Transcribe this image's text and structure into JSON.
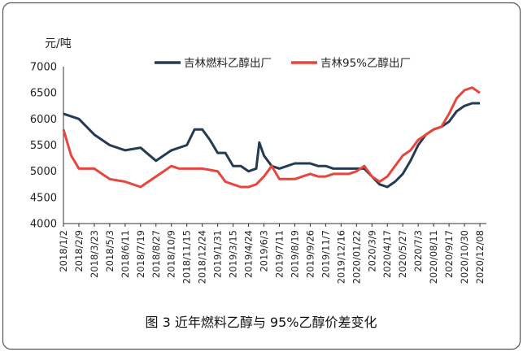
{
  "chart_data": {
    "type": "line",
    "unit_label": "元/吨",
    "caption": "图 3  近年燃料乙醇与 95%乙醇价差变化",
    "ylim": [
      4000,
      7000
    ],
    "yticks": [
      4000,
      4500,
      5000,
      5500,
      6000,
      6500,
      7000
    ],
    "x_tick_labels": [
      "2018/1/2",
      "2018/2/9",
      "2018/3/23",
      "2018/5/3",
      "2018/6/11",
      "2018/7/19",
      "2018/8/27",
      "2018/10/9",
      "2018/11/15",
      "2018/12/24",
      "2019/1/31",
      "2019/3/15",
      "2019/4/24",
      "2019/6/3",
      "2019/7/11",
      "2019/8/19",
      "2019/9/26",
      "2019/11/7",
      "2019/12/16",
      "2020/01/22",
      "2020/3/9",
      "2020/4/17",
      "2020/5/27",
      "2020/7/3",
      "2020/08/11",
      "2020/9/17",
      "2020/10/30",
      "2020/12/08"
    ],
    "grid": false,
    "legend_position": "top-center",
    "series": [
      {
        "name": "吉林燃料乙醇出厂",
        "color": "#243b53",
        "values": [
          [
            0,
            6100
          ],
          [
            1,
            6000
          ],
          [
            2,
            5700
          ],
          [
            3,
            5500
          ],
          [
            4,
            5400
          ],
          [
            5,
            5450
          ],
          [
            6,
            5200
          ],
          [
            7,
            5400
          ],
          [
            8,
            5500
          ],
          [
            8.5,
            5800
          ],
          [
            9,
            5800
          ],
          [
            9.5,
            5600
          ],
          [
            10,
            5350
          ],
          [
            10.5,
            5350
          ],
          [
            11,
            5100
          ],
          [
            11.5,
            5100
          ],
          [
            12,
            5000
          ],
          [
            12.5,
            5050
          ],
          [
            12.7,
            5550
          ],
          [
            13,
            5300
          ],
          [
            13.5,
            5100
          ],
          [
            14,
            5050
          ],
          [
            14.5,
            5100
          ],
          [
            15,
            5150
          ],
          [
            15.5,
            5150
          ],
          [
            16,
            5150
          ],
          [
            16.5,
            5100
          ],
          [
            17,
            5100
          ],
          [
            17.5,
            5050
          ],
          [
            18,
            5050
          ],
          [
            18.5,
            5050
          ],
          [
            19,
            5050
          ],
          [
            19.5,
            5050
          ],
          [
            20,
            4900
          ],
          [
            20.5,
            4750
          ],
          [
            21,
            4700
          ],
          [
            21.5,
            4800
          ],
          [
            22,
            4950
          ],
          [
            22.5,
            5200
          ],
          [
            23,
            5500
          ],
          [
            23.5,
            5700
          ],
          [
            24,
            5800
          ],
          [
            24.5,
            5850
          ],
          [
            25,
            5950
          ],
          [
            25.5,
            6150
          ],
          [
            26,
            6250
          ],
          [
            26.5,
            6300
          ],
          [
            27,
            6300
          ]
        ]
      },
      {
        "name": "吉林95%乙醇出厂",
        "color": "#e8453c",
        "values": [
          [
            0,
            5800
          ],
          [
            0.5,
            5300
          ],
          [
            1,
            5050
          ],
          [
            2,
            5050
          ],
          [
            3,
            4850
          ],
          [
            4,
            4800
          ],
          [
            5,
            4700
          ],
          [
            6,
            4900
          ],
          [
            6.5,
            5000
          ],
          [
            7,
            5100
          ],
          [
            7.5,
            5050
          ],
          [
            8,
            5050
          ],
          [
            9,
            5050
          ],
          [
            10,
            5000
          ],
          [
            10.5,
            4800
          ],
          [
            11,
            4750
          ],
          [
            11.5,
            4700
          ],
          [
            12,
            4700
          ],
          [
            12.5,
            4750
          ],
          [
            13,
            4900
          ],
          [
            13.5,
            5100
          ],
          [
            14,
            4850
          ],
          [
            14.5,
            4850
          ],
          [
            15,
            4850
          ],
          [
            15.5,
            4900
          ],
          [
            16,
            4950
          ],
          [
            16.5,
            4900
          ],
          [
            17,
            4900
          ],
          [
            17.5,
            4950
          ],
          [
            18,
            4950
          ],
          [
            18.5,
            4950
          ],
          [
            19,
            5000
          ],
          [
            19.5,
            5100
          ],
          [
            20,
            4900
          ],
          [
            20.5,
            4800
          ],
          [
            21,
            4900
          ],
          [
            21.5,
            5100
          ],
          [
            22,
            5300
          ],
          [
            22.5,
            5400
          ],
          [
            23,
            5600
          ],
          [
            23.5,
            5700
          ],
          [
            24,
            5800
          ],
          [
            24.5,
            5850
          ],
          [
            25,
            6100
          ],
          [
            25.5,
            6400
          ],
          [
            26,
            6550
          ],
          [
            26.5,
            6600
          ],
          [
            27,
            6500
          ]
        ]
      }
    ]
  }
}
